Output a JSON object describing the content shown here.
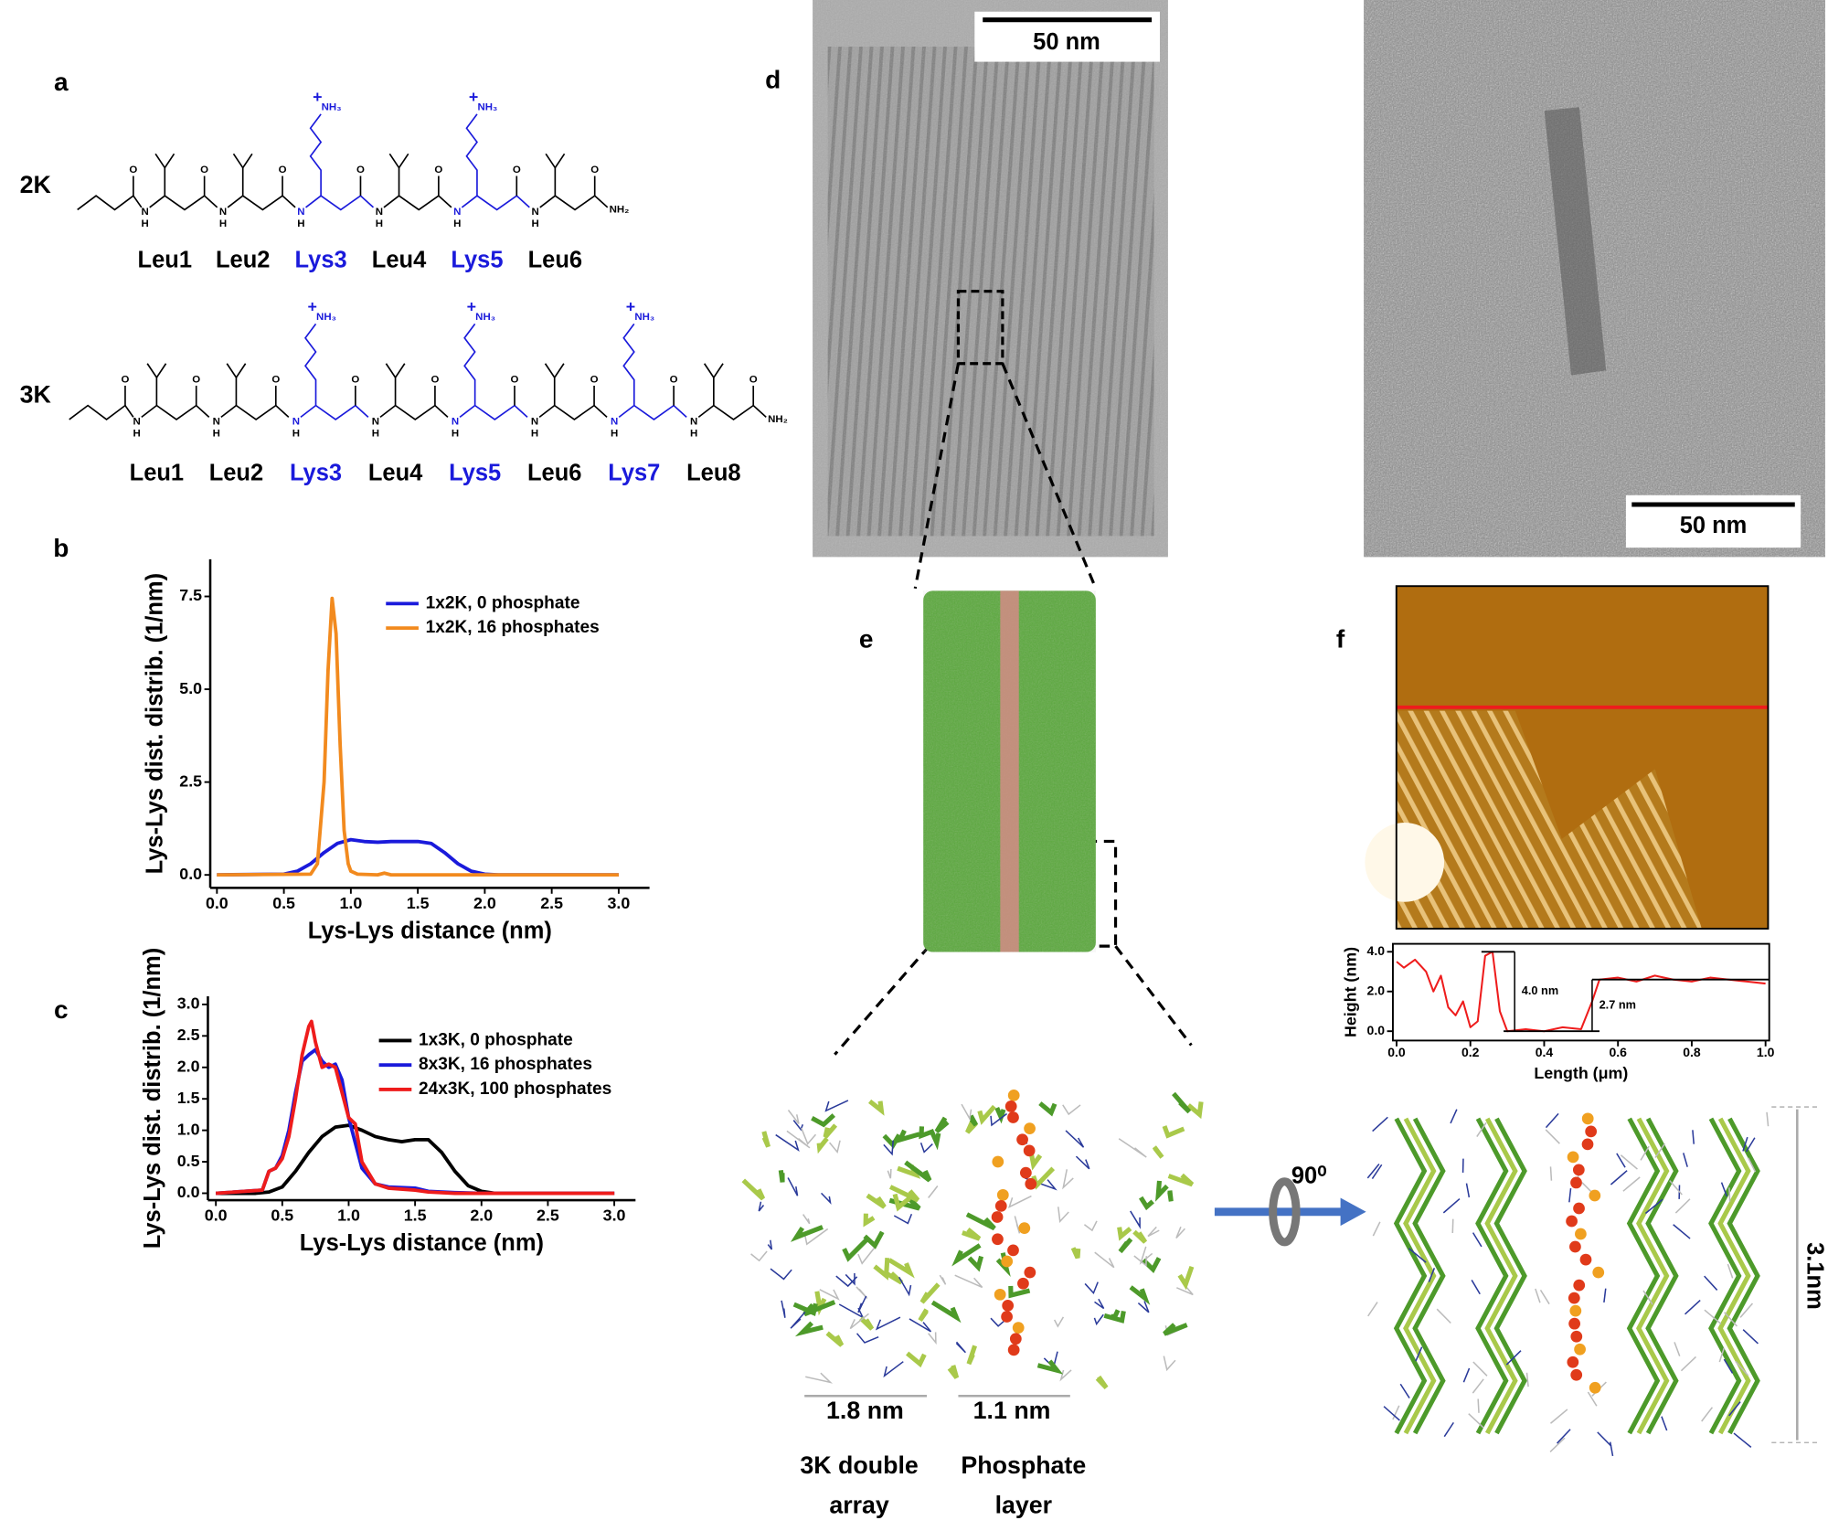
{
  "chart_data": [
    {
      "type": "line",
      "xlabel": "Lys-Lys distance (nm)",
      "ylabel": "Lys-Lys dist. distrib. (1/nm)",
      "xlim": [
        -0.05,
        3.23
      ],
      "ylim": [
        -0.35,
        8.5
      ],
      "xticks": [
        {
          "value": 0,
          "label": "0.0"
        },
        0.5,
        {
          "value": 1,
          "label": "1.0"
        },
        1.5,
        {
          "value": 2,
          "label": "2.0"
        },
        2.5,
        {
          "value": 3,
          "label": "3.0"
        }
      ],
      "yticks": [
        {
          "value": 0,
          "label": "0.0"
        },
        2.5,
        {
          "value": 5,
          "label": "5.0"
        },
        7.5
      ],
      "legend": "upper right",
      "frame": "open",
      "series": [
        {
          "name": "1x2K, 0 phosphate",
          "color": "#1a1adb",
          "x": [
            0,
            0.5,
            0.6,
            0.7,
            0.8,
            0.9,
            1.0,
            1.1,
            1.2,
            1.3,
            1.4,
            1.5,
            1.6,
            1.7,
            1.8,
            1.9,
            2.0,
            2.1,
            3.0
          ],
          "values": [
            0,
            0.02,
            0.1,
            0.3,
            0.6,
            0.85,
            0.95,
            0.9,
            0.88,
            0.9,
            0.9,
            0.9,
            0.85,
            0.6,
            0.3,
            0.1,
            0.02,
            0,
            0
          ]
        },
        {
          "name": "1x2K, 16 phosphates",
          "color": "#f28a1e",
          "x": [
            0,
            0.7,
            0.75,
            0.8,
            0.83,
            0.86,
            0.89,
            0.92,
            0.95,
            0.98,
            1.0,
            1.05,
            1.2,
            1.25,
            1.3,
            3.0
          ],
          "values": [
            0,
            0.02,
            0.3,
            2.5,
            5.5,
            7.45,
            6.5,
            3.5,
            1.2,
            0.3,
            0.1,
            0.02,
            0,
            0.05,
            0,
            0
          ]
        }
      ]
    },
    {
      "type": "line",
      "xlabel": "Lys-Lys distance (nm)",
      "ylabel": "Lys-Lys dist. distrib. (1/nm)",
      "xlim": [
        -0.06,
        3.16
      ],
      "ylim": [
        -0.11,
        3.13
      ],
      "xticks": [
        {
          "value": 0,
          "label": "0.0"
        },
        0.5,
        {
          "value": 1,
          "label": "1.0"
        },
        1.5,
        {
          "value": 2,
          "label": "2.0"
        },
        2.5,
        {
          "value": 3,
          "label": "3.0"
        }
      ],
      "yticks": [
        {
          "value": 0,
          "label": "0.0"
        },
        0.5,
        {
          "value": 1,
          "label": "1.0"
        },
        1.5,
        {
          "value": 2,
          "label": "2.0"
        },
        2.5,
        {
          "value": 3,
          "label": "3.0"
        }
      ],
      "legend": "upper right",
      "frame": "open",
      "series": [
        {
          "name": "1x3K, 0 phosphate",
          "color": "#000000",
          "x": [
            0,
            0.3,
            0.4,
            0.5,
            0.6,
            0.7,
            0.8,
            0.9,
            1.0,
            1.1,
            1.2,
            1.3,
            1.4,
            1.5,
            1.6,
            1.7,
            1.8,
            1.9,
            2.0,
            2.1,
            3.0
          ],
          "values": [
            0,
            0,
            0.02,
            0.1,
            0.35,
            0.65,
            0.9,
            1.05,
            1.08,
            1.0,
            0.9,
            0.85,
            0.82,
            0.85,
            0.85,
            0.65,
            0.35,
            0.12,
            0.03,
            0,
            0
          ]
        },
        {
          "name": "8x3K, 16 phosphates",
          "color": "#1a1adb",
          "x": [
            0,
            0.35,
            0.4,
            0.45,
            0.5,
            0.55,
            0.6,
            0.65,
            0.7,
            0.75,
            0.8,
            0.85,
            0.9,
            0.95,
            1.0,
            1.05,
            1.1,
            1.2,
            1.3,
            1.5,
            1.6,
            1.8,
            2.0,
            3.0
          ],
          "values": [
            0,
            0.05,
            0.35,
            0.4,
            0.6,
            1.0,
            1.6,
            2.1,
            2.2,
            2.28,
            2.1,
            2.0,
            2.05,
            1.8,
            1.2,
            0.8,
            0.4,
            0.15,
            0.1,
            0.08,
            0.03,
            0.01,
            0,
            0
          ]
        },
        {
          "name": "24x3K, 100 phosphates",
          "color": "#ee1c1c",
          "x": [
            0,
            0.35,
            0.4,
            0.45,
            0.5,
            0.55,
            0.6,
            0.65,
            0.7,
            0.72,
            0.75,
            0.8,
            0.85,
            0.9,
            0.95,
            1.0,
            1.05,
            1.1,
            1.2,
            1.3,
            1.5,
            1.6,
            1.8,
            2.0,
            3.0
          ],
          "values": [
            0,
            0.05,
            0.35,
            0.4,
            0.55,
            0.9,
            1.5,
            2.2,
            2.65,
            2.73,
            2.4,
            2.0,
            2.05,
            2.0,
            1.6,
            1.2,
            1.1,
            0.5,
            0.15,
            0.08,
            0.05,
            0.02,
            0,
            0,
            0
          ]
        }
      ]
    },
    {
      "type": "line",
      "xlabel": "Length (μm)",
      "ylabel": "Height (nm)",
      "xlim": [
        -0.01,
        1.01
      ],
      "ylim": [
        -0.47,
        4.4
      ],
      "xticks": [
        {
          "value": 0,
          "label": "0.0"
        },
        0.2,
        0.4,
        0.6,
        0.8,
        {
          "value": 1,
          "label": "1.0"
        }
      ],
      "yticks": [
        {
          "value": 0,
          "label": "0.0"
        },
        {
          "value": 2,
          "label": "2.0"
        },
        {
          "value": 4,
          "label": "4.0"
        }
      ],
      "frame": "box",
      "annotations": [
        "4.0 nm",
        "2.7 nm"
      ],
      "series": [
        {
          "color": "#ee1c1c",
          "x": [
            0,
            0.02,
            0.05,
            0.08,
            0.1,
            0.12,
            0.14,
            0.16,
            0.18,
            0.2,
            0.22,
            0.24,
            0.26,
            0.28,
            0.3,
            0.35,
            0.4,
            0.45,
            0.5,
            0.53,
            0.55,
            0.6,
            0.65,
            0.7,
            0.75,
            0.8,
            0.85,
            0.9,
            0.95,
            1.0
          ],
          "values": [
            3.5,
            3.2,
            3.6,
            3.0,
            2.0,
            2.8,
            1.2,
            0.8,
            1.5,
            0.2,
            0.5,
            3.8,
            4.0,
            1.0,
            0.0,
            0.1,
            0.0,
            0.2,
            0.1,
            1.5,
            2.6,
            2.7,
            2.5,
            2.8,
            2.6,
            2.5,
            2.7,
            2.6,
            2.5,
            2.4
          ]
        }
      ]
    }
  ],
  "panels": {
    "labels": [
      "a",
      "b",
      "c",
      "d",
      "e",
      "f"
    ],
    "peptides": [
      {
        "name": "2K",
        "residues": [
          {
            "name": "Leu1",
            "color": "#000000"
          },
          {
            "name": "Leu2",
            "color": "#000000"
          },
          {
            "name": "Lys3",
            "color": "#1a1adb"
          },
          {
            "name": "Leu4",
            "color": "#000000"
          },
          {
            "name": "Lys5",
            "color": "#1a1adb"
          },
          {
            "name": "Leu6",
            "color": "#000000"
          }
        ]
      },
      {
        "name": "3K",
        "residues": [
          {
            "name": "Leu1",
            "color": "#000000"
          },
          {
            "name": "Leu2",
            "color": "#000000"
          },
          {
            "name": "Lys3",
            "color": "#1a1adb"
          },
          {
            "name": "Leu4",
            "color": "#000000"
          },
          {
            "name": "Lys5",
            "color": "#1a1adb"
          },
          {
            "name": "Leu6",
            "color": "#000000"
          },
          {
            "name": "Lys7",
            "color": "#1a1adb"
          },
          {
            "name": "Leu8",
            "color": "#000000"
          }
        ]
      }
    ],
    "atoms": {
      "o": "O",
      "n": "N",
      "h": "H",
      "nh2": "NH₂",
      "nh3": "NH₃",
      "plus": "+"
    },
    "scale_bars": [
      "50 nm",
      "50 nm"
    ],
    "rotation": "90⁰",
    "height": "3.1nm",
    "spacings": [
      "1.8 nm",
      "1.1 nm"
    ],
    "layers": [
      [
        "3K double",
        "array"
      ],
      [
        "Phosphate",
        "layer"
      ]
    ]
  }
}
